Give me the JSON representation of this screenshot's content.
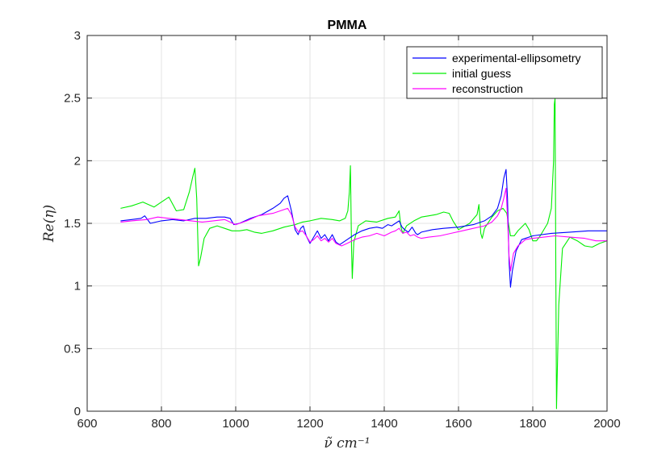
{
  "chart_data": {
    "type": "line",
    "title": "PMMA",
    "xlabel": "ν̃ cm⁻¹",
    "ylabel": "Re(η)",
    "xlim": [
      600,
      2000
    ],
    "ylim": [
      0,
      3
    ],
    "xticks": [
      "600",
      "800",
      "1000",
      "1200",
      "1400",
      "1600",
      "1800",
      "2000"
    ],
    "yticks": [
      "0",
      "0.5",
      "1",
      "1.5",
      "2",
      "2.5",
      "3"
    ],
    "grid": true,
    "legend_position": "top-right",
    "series": [
      {
        "name": "experimental-ellipsometry",
        "color": "#0000ff",
        "x": [
          690,
          720,
          745,
          755,
          770,
          800,
          830,
          860,
          890,
          920,
          950,
          970,
          985,
          995,
          1010,
          1040,
          1070,
          1100,
          1120,
          1130,
          1140,
          1150,
          1160,
          1168,
          1175,
          1182,
          1190,
          1200,
          1210,
          1220,
          1230,
          1240,
          1250,
          1260,
          1270,
          1280,
          1300,
          1320,
          1340,
          1360,
          1380,
          1395,
          1410,
          1420,
          1430,
          1440,
          1448,
          1455,
          1465,
          1475,
          1485,
          1490,
          1500,
          1530,
          1560,
          1600,
          1640,
          1670,
          1690,
          1705,
          1715,
          1722,
          1728,
          1732,
          1736,
          1740,
          1745,
          1755,
          1770,
          1800,
          1850,
          1900,
          1950,
          2000
        ],
        "values": [
          1.52,
          1.53,
          1.54,
          1.56,
          1.5,
          1.52,
          1.53,
          1.52,
          1.54,
          1.54,
          1.55,
          1.55,
          1.54,
          1.49,
          1.5,
          1.54,
          1.57,
          1.62,
          1.66,
          1.7,
          1.72,
          1.6,
          1.45,
          1.41,
          1.46,
          1.48,
          1.4,
          1.34,
          1.39,
          1.44,
          1.38,
          1.41,
          1.36,
          1.41,
          1.35,
          1.33,
          1.37,
          1.41,
          1.44,
          1.46,
          1.47,
          1.46,
          1.49,
          1.48,
          1.5,
          1.52,
          1.47,
          1.45,
          1.43,
          1.47,
          1.42,
          1.41,
          1.43,
          1.45,
          1.46,
          1.47,
          1.49,
          1.52,
          1.56,
          1.62,
          1.72,
          1.86,
          1.93,
          1.7,
          1.2,
          0.99,
          1.12,
          1.28,
          1.37,
          1.4,
          1.42,
          1.43,
          1.44,
          1.44
        ]
      },
      {
        "name": "initial guess",
        "color": "#00ee00",
        "x": [
          690,
          720,
          750,
          780,
          800,
          820,
          840,
          860,
          875,
          885,
          890,
          895,
          900,
          905,
          915,
          930,
          950,
          970,
          990,
          1010,
          1030,
          1050,
          1070,
          1100,
          1130,
          1160,
          1180,
          1200,
          1230,
          1260,
          1280,
          1295,
          1302,
          1306,
          1309,
          1312,
          1314,
          1318,
          1330,
          1350,
          1380,
          1410,
          1430,
          1440,
          1445,
          1450,
          1460,
          1480,
          1500,
          1520,
          1540,
          1560,
          1575,
          1585,
          1600,
          1630,
          1650,
          1655,
          1660,
          1664,
          1670,
          1690,
          1705,
          1720,
          1730,
          1740,
          1750,
          1760,
          1780,
          1790,
          1800,
          1810,
          1820,
          1840,
          1850,
          1856,
          1858,
          1860,
          1862,
          1864,
          1870,
          1880,
          1900,
          1920,
          1940,
          1960,
          1980,
          2000
        ],
        "values": [
          1.62,
          1.64,
          1.67,
          1.63,
          1.67,
          1.71,
          1.6,
          1.61,
          1.75,
          1.88,
          1.94,
          1.7,
          1.16,
          1.22,
          1.38,
          1.46,
          1.48,
          1.46,
          1.44,
          1.44,
          1.45,
          1.43,
          1.42,
          1.44,
          1.47,
          1.49,
          1.51,
          1.52,
          1.54,
          1.53,
          1.52,
          1.54,
          1.6,
          1.75,
          1.96,
          1.3,
          1.06,
          1.35,
          1.48,
          1.52,
          1.51,
          1.54,
          1.55,
          1.6,
          1.47,
          1.42,
          1.48,
          1.52,
          1.55,
          1.56,
          1.57,
          1.59,
          1.58,
          1.52,
          1.45,
          1.5,
          1.57,
          1.65,
          1.42,
          1.38,
          1.46,
          1.55,
          1.6,
          1.62,
          1.58,
          1.4,
          1.4,
          1.44,
          1.5,
          1.45,
          1.36,
          1.36,
          1.4,
          1.5,
          1.62,
          2.0,
          2.45,
          2.5,
          1.2,
          0.02,
          0.85,
          1.3,
          1.39,
          1.36,
          1.32,
          1.31,
          1.34,
          1.36
        ]
      },
      {
        "name": "reconstruction",
        "color": "#ff00ff",
        "x": [
          690,
          720,
          760,
          790,
          820,
          850,
          880,
          910,
          940,
          970,
          1000,
          1030,
          1060,
          1080,
          1100,
          1120,
          1140,
          1150,
          1160,
          1170,
          1180,
          1190,
          1200,
          1210,
          1220,
          1230,
          1240,
          1250,
          1260,
          1270,
          1285,
          1300,
          1320,
          1340,
          1360,
          1380,
          1400,
          1420,
          1430,
          1440,
          1450,
          1460,
          1470,
          1480,
          1490,
          1500,
          1520,
          1550,
          1580,
          1610,
          1640,
          1670,
          1690,
          1705,
          1715,
          1722,
          1728,
          1732,
          1736,
          1740,
          1748,
          1760,
          1780,
          1800,
          1830,
          1860,
          1900,
          1940,
          1970,
          2000
        ],
        "values": [
          1.51,
          1.52,
          1.53,
          1.55,
          1.54,
          1.53,
          1.52,
          1.51,
          1.52,
          1.53,
          1.49,
          1.52,
          1.56,
          1.57,
          1.58,
          1.6,
          1.62,
          1.57,
          1.47,
          1.43,
          1.44,
          1.4,
          1.35,
          1.37,
          1.4,
          1.36,
          1.38,
          1.35,
          1.38,
          1.34,
          1.32,
          1.34,
          1.37,
          1.39,
          1.4,
          1.42,
          1.4,
          1.43,
          1.44,
          1.46,
          1.42,
          1.43,
          1.4,
          1.41,
          1.39,
          1.38,
          1.39,
          1.4,
          1.42,
          1.44,
          1.46,
          1.48,
          1.51,
          1.56,
          1.62,
          1.7,
          1.78,
          1.55,
          1.24,
          1.12,
          1.26,
          1.32,
          1.37,
          1.38,
          1.39,
          1.4,
          1.39,
          1.38,
          1.36,
          1.36
        ]
      }
    ]
  }
}
